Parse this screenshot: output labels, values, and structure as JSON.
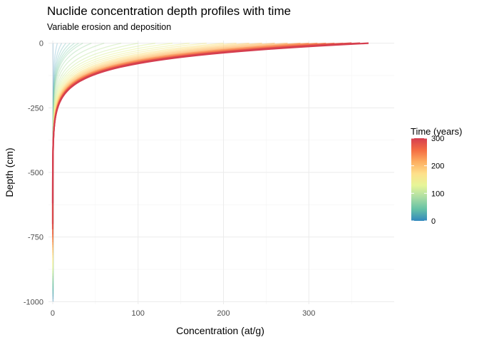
{
  "chart_data": {
    "type": "line",
    "title": "Nuclide concentration depth profiles with time",
    "subtitle": "Variable erosion and deposition",
    "xlabel": "Concentration (at/g)",
    "ylabel": "Depth (cm)",
    "xlim": [
      -5,
      400
    ],
    "ylim": [
      -1010,
      10
    ],
    "x_ticks": [
      0,
      100,
      200,
      300
    ],
    "x_tick_labels": [
      "0",
      "100",
      "200",
      "300"
    ],
    "y_ticks": [
      0,
      -250,
      -500,
      -750,
      -1000
    ],
    "y_tick_labels": [
      "0",
      "-250",
      "-500",
      "-750",
      "-1000"
    ],
    "grid": true,
    "legend": {
      "title": "Time (years)",
      "placement": "right",
      "type": "colorbar",
      "min": 0,
      "max": 300,
      "breaks": [
        0,
        100,
        200,
        300
      ],
      "break_labels": [
        "0",
        "100",
        "200",
        "300"
      ],
      "colors": [
        "#3288bd",
        "#66c2a5",
        "#abdda4",
        "#e6f598",
        "#fee08b",
        "#fdae61",
        "#f46d43",
        "#d53e4f"
      ]
    },
    "series": [
      {
        "time": 0,
        "surface": 0,
        "length": 60,
        "max_depth": -1000
      },
      {
        "time": 10,
        "surface": 5,
        "length": 60,
        "max_depth": -1000
      },
      {
        "time": 20,
        "surface": 10,
        "length": 60,
        "max_depth": -990
      },
      {
        "time": 30,
        "surface": 15,
        "length": 60,
        "max_depth": -980
      },
      {
        "time": 40,
        "surface": 20,
        "length": 60,
        "max_depth": -970
      },
      {
        "time": 50,
        "surface": 25,
        "length": 60,
        "max_depth": -960
      },
      {
        "time": 60,
        "surface": 30,
        "length": 60,
        "max_depth": -950
      },
      {
        "time": 70,
        "surface": 35,
        "length": 60,
        "max_depth": -940
      },
      {
        "time": 80,
        "surface": 45,
        "length": 60,
        "max_depth": -930
      },
      {
        "time": 90,
        "surface": 60,
        "length": 60,
        "max_depth": -920
      },
      {
        "time": 100,
        "surface": 80,
        "length": 60,
        "max_depth": -910
      },
      {
        "time": 110,
        "surface": 100,
        "length": 60,
        "max_depth": -900
      },
      {
        "time": 120,
        "surface": 120,
        "length": 60,
        "max_depth": -890
      },
      {
        "time": 130,
        "surface": 140,
        "length": 60,
        "max_depth": -880
      },
      {
        "time": 140,
        "surface": 160,
        "length": 60,
        "max_depth": -870
      },
      {
        "time": 150,
        "surface": 180,
        "length": 60,
        "max_depth": -860
      },
      {
        "time": 160,
        "surface": 200,
        "length": 60,
        "max_depth": -850
      },
      {
        "time": 170,
        "surface": 215,
        "length": 60,
        "max_depth": -840
      },
      {
        "time": 180,
        "surface": 230,
        "length": 60,
        "max_depth": -830
      },
      {
        "time": 190,
        "surface": 245,
        "length": 60,
        "max_depth": -820
      },
      {
        "time": 200,
        "surface": 260,
        "length": 60,
        "max_depth": -810
      },
      {
        "time": 210,
        "surface": 275,
        "length": 60,
        "max_depth": -800
      },
      {
        "time": 220,
        "surface": 290,
        "length": 60,
        "max_depth": -790
      },
      {
        "time": 230,
        "surface": 300,
        "length": 60,
        "max_depth": -780
      },
      {
        "time": 240,
        "surface": 310,
        "length": 60,
        "max_depth": -770
      },
      {
        "time": 250,
        "surface": 320,
        "length": 60,
        "max_depth": -760
      },
      {
        "time": 260,
        "surface": 330,
        "length": 60,
        "max_depth": -750
      },
      {
        "time": 270,
        "surface": 340,
        "length": 60,
        "max_depth": -740
      },
      {
        "time": 280,
        "surface": 350,
        "length": 60,
        "max_depth": -720
      },
      {
        "time": 290,
        "surface": 360,
        "length": 60,
        "max_depth": -700
      },
      {
        "time": 300,
        "surface": 370,
        "length": 60,
        "max_depth": -620
      }
    ]
  }
}
